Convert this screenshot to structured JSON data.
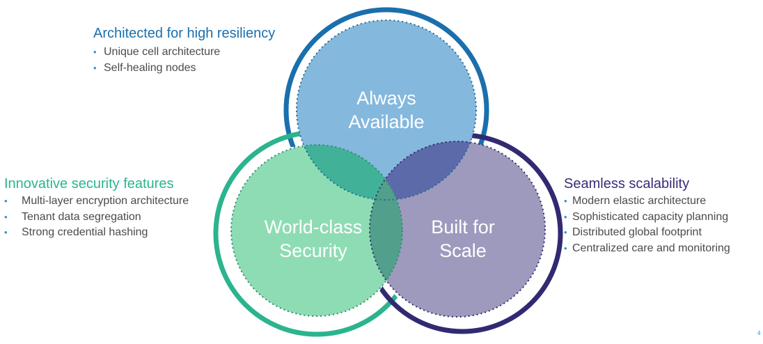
{
  "circles": {
    "top": {
      "line1": "Always",
      "line2": "Available"
    },
    "left": {
      "line1": "World-class",
      "line2": "Security"
    },
    "right": {
      "line1": "Built for",
      "line2": "Scale"
    }
  },
  "blocks": {
    "top": {
      "title": "Architected for high resiliency",
      "items": [
        "Unique cell architecture",
        "Self-healing nodes"
      ]
    },
    "left": {
      "title": "Innovative security features",
      "items": [
        "Multi-layer encryption architecture",
        "Tenant data segregation",
        "Strong credential hashing"
      ]
    },
    "right": {
      "title": "Seamless scalability",
      "items": [
        "Modern elastic architecture",
        "Sophisticated capacity planning",
        "Distributed global footprint",
        "Centralized care and monitoring"
      ]
    }
  },
  "bullet_char": "•",
  "page_number": "4",
  "colors": {
    "top_ring": "#1a6fad",
    "top_fill": "#85b8dd",
    "left_ring": "#2bb48e",
    "left_fill": "#8edcb4",
    "right_ring": "#312a72",
    "right_fill": "#9e9abe"
  }
}
